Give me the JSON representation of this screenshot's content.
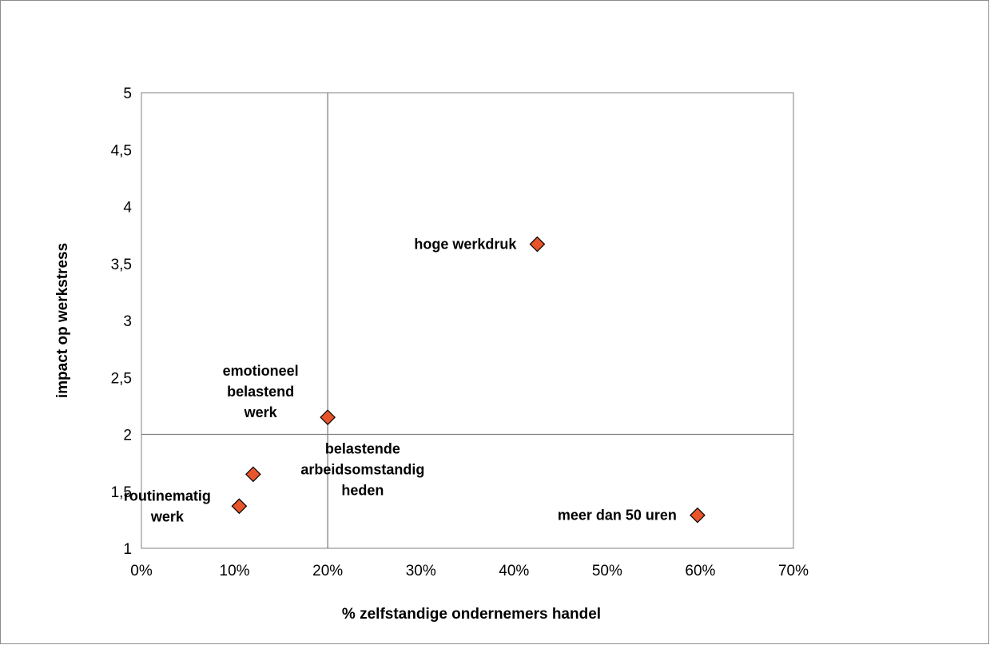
{
  "chart_data": {
    "type": "scatter",
    "xlabel": "% zelfstandige ondernemers handel",
    "ylabel": "impact op werkstress",
    "xlim": [
      0,
      0.7
    ],
    "ylim": [
      1,
      5
    ],
    "x_ticks": [
      "0%",
      "10%",
      "20%",
      "30%",
      "40%",
      "50%",
      "60%",
      "70%"
    ],
    "y_ticks": [
      "1",
      "1,5",
      "2",
      "2,5",
      "3",
      "3,5",
      "4",
      "4,5",
      "5"
    ],
    "reference_lines": {
      "x": 0.2,
      "y": 2
    },
    "grid": false,
    "legend": "none",
    "marker": "diamond",
    "marker_color": "#E8552A",
    "points": [
      {
        "label": [
          "hoge werkdruk"
        ],
        "x": 0.425,
        "y": 3.67,
        "label_pos": "left"
      },
      {
        "label": [
          "emotioneel",
          "belastend",
          "werk"
        ],
        "x": 0.2,
        "y": 2.15,
        "label_pos": "upper-left"
      },
      {
        "label": [
          "belastende",
          "arbeidsomstandig",
          "heden"
        ],
        "x": 0.12,
        "y": 1.65,
        "label_pos": "right"
      },
      {
        "label": [
          "routinematig",
          "werk"
        ],
        "x": 0.105,
        "y": 1.37,
        "label_pos": "left"
      },
      {
        "label": [
          "meer dan 50 uren"
        ],
        "x": 0.597,
        "y": 1.29,
        "label_pos": "left"
      }
    ]
  }
}
